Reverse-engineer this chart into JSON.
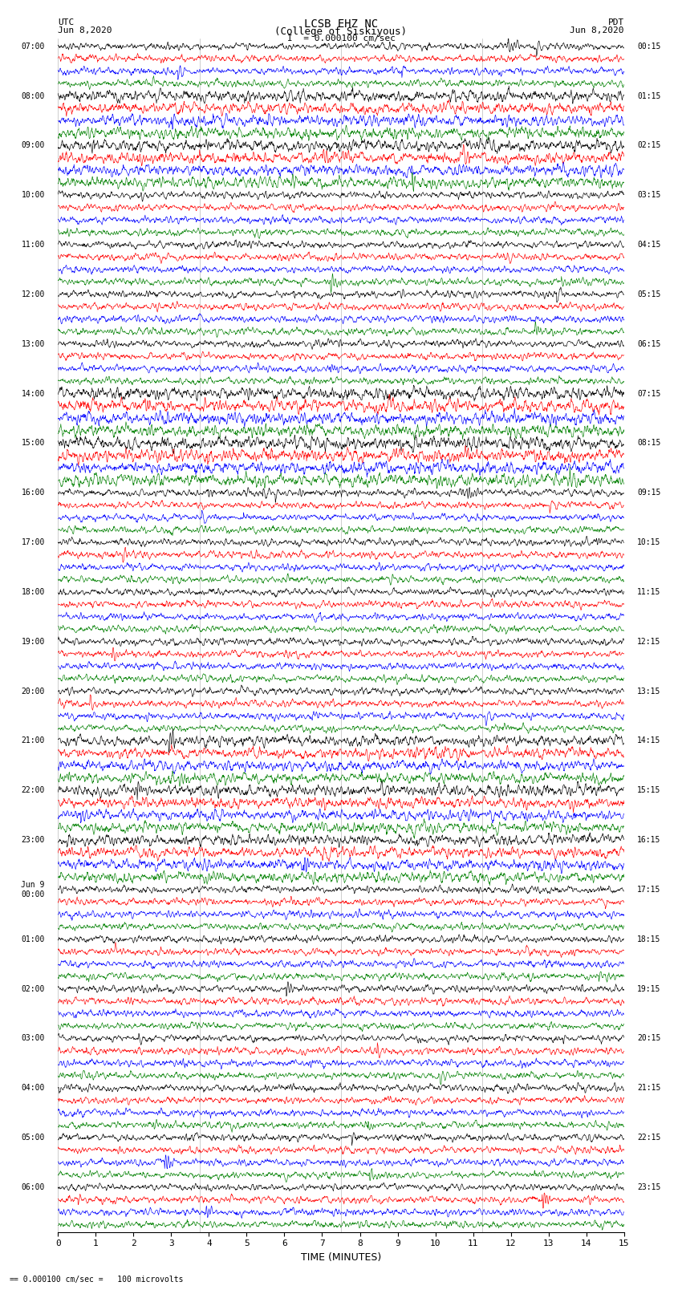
{
  "title_line1": "LCSB EHZ NC",
  "title_line2": "(College of Siskiyous)",
  "scale_text": "I  = 0.000100 cm/sec",
  "footer_text": "= 0.000100 cm/sec =   100 microvolts",
  "utc_label": "UTC",
  "pdt_label": "PDT",
  "date_left": "Jun 8,2020",
  "date_right": "Jun 8,2020",
  "xlabel": "TIME (MINUTES)",
  "xlim": [
    0,
    15
  ],
  "xticks": [
    0,
    1,
    2,
    3,
    4,
    5,
    6,
    7,
    8,
    9,
    10,
    11,
    12,
    13,
    14,
    15
  ],
  "colors_cycle": [
    "black",
    "red",
    "blue",
    "green"
  ],
  "left_labels": [
    "07:00",
    "08:00",
    "09:00",
    "10:00",
    "11:00",
    "12:00",
    "13:00",
    "14:00",
    "15:00",
    "16:00",
    "17:00",
    "18:00",
    "19:00",
    "20:00",
    "21:00",
    "22:00",
    "23:00",
    "Jun 9\n00:00",
    "01:00",
    "02:00",
    "03:00",
    "04:00",
    "05:00",
    "06:00"
  ],
  "right_labels": [
    "00:15",
    "01:15",
    "02:15",
    "03:15",
    "04:15",
    "05:15",
    "06:15",
    "07:15",
    "08:15",
    "09:15",
    "10:15",
    "11:15",
    "12:15",
    "13:15",
    "14:15",
    "15:15",
    "16:15",
    "17:15",
    "18:15",
    "19:15",
    "20:15",
    "21:15",
    "22:15",
    "23:15"
  ],
  "n_hour_groups": 24,
  "traces_per_group": 4,
  "n_points": 1800,
  "background_color": "white",
  "plot_bg": "white",
  "gridline_color": "#aaaaaa",
  "gridline_x_positions": [
    0,
    3.75,
    7.5,
    11.25,
    15
  ]
}
